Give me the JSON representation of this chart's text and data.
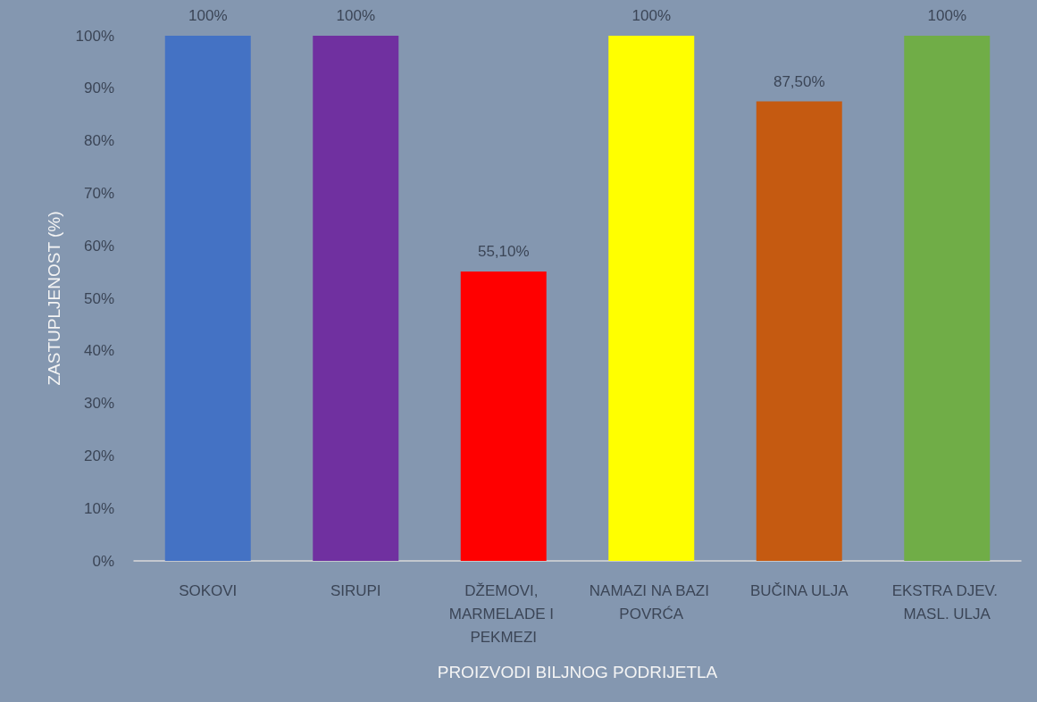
{
  "chart_data": {
    "type": "bar",
    "xlabel": "PROIZVODI BILJNOG PODRIJETLA",
    "ylabel": "ZASTUPLJENOST (%)",
    "categories": [
      "SOKOVI",
      "SIRUPI",
      "DŽEMOVI, MARMELADE I PEKMEZI",
      "NAMAZI NA BAZI POVRĆA",
      "BUČINA ULJA",
      "EKSTRA DJEV. MASL. ULJA"
    ],
    "values": [
      100,
      100,
      55.1,
      100,
      87.5,
      100
    ],
    "colors": [
      "#4472c4",
      "#7030a0",
      "#ff0000",
      "#ffff00",
      "#c55a11",
      "#70ad47"
    ],
    "value_labels": [
      "100%",
      "100%",
      "55,10%",
      "100%",
      "87,50%",
      "100%"
    ],
    "ylim": [
      0,
      100
    ],
    "yticks": [
      {
        "value": 0,
        "label": "0%"
      },
      {
        "value": 10,
        "label": "10%"
      },
      {
        "value": 20,
        "label": "20%"
      },
      {
        "value": 30,
        "label": "30%"
      },
      {
        "value": 40,
        "label": "40%"
      },
      {
        "value": 50,
        "label": "50%"
      },
      {
        "value": 60,
        "label": "60%"
      },
      {
        "value": 70,
        "label": "70%"
      },
      {
        "value": 80,
        "label": "80%"
      },
      {
        "value": 90,
        "label": "90%"
      },
      {
        "value": 100,
        "label": "100%"
      }
    ],
    "grid": false
  }
}
